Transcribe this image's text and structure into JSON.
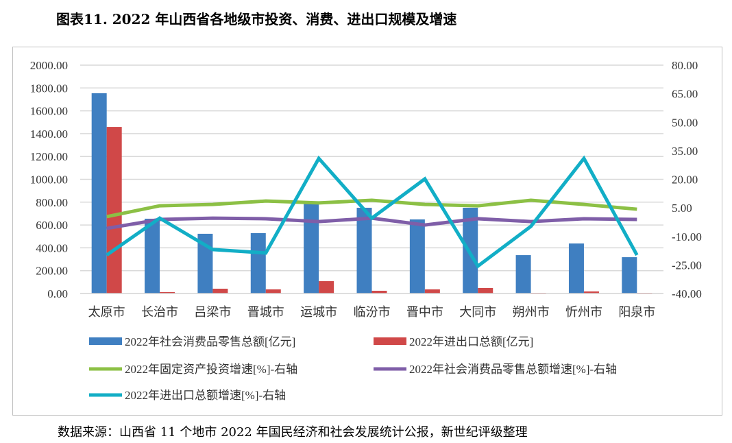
{
  "title": "图表11. 2022 年山西省各地级市投资、消费、进出口规模及增速",
  "source": "数据来源：山西省 11 个地市 2022 年国民经济和社会发展统计公报，新世纪评级整理",
  "chart_data": {
    "type": "bar",
    "categories": [
      "太原市",
      "长治市",
      "吕梁市",
      "晋城市",
      "运城市",
      "临汾市",
      "晋中市",
      "大同市",
      "朔州市",
      "忻州市",
      "阳泉市"
    ],
    "left_axis": {
      "ylim": [
        0,
        2000
      ],
      "ticks": [
        "0.00",
        "200.00",
        "400.00",
        "600.00",
        "800.00",
        "1000.00",
        "1200.00",
        "1400.00",
        "1600.00",
        "1800.00",
        "2000.00"
      ]
    },
    "right_axis": {
      "ylim": [
        -40,
        80
      ],
      "ticks": [
        "-40.00",
        "-25.00",
        "-10.00",
        "5.00",
        "20.00",
        "35.00",
        "50.00",
        "65.00",
        "80.00"
      ]
    },
    "grid": true,
    "legend_position": "bottom",
    "series": [
      {
        "name": "2022年社会消费品零售总额[亿元]",
        "type": "bar",
        "axis": "left",
        "color": "#3f7fc1",
        "values": [
          1754,
          655,
          523,
          529,
          793,
          751,
          649,
          751,
          336,
          438,
          318
        ]
      },
      {
        "name": "2022年进出口总额[亿元]",
        "type": "bar",
        "axis": "left",
        "color": "#d04848",
        "values": [
          1459,
          12,
          42,
          36,
          108,
          24,
          36,
          48,
          6,
          18,
          6
        ]
      },
      {
        "name": "2022年固定资产投资增速[%]-右轴",
        "type": "line",
        "axis": "right",
        "color": "#8cc045",
        "values": [
          0.4,
          6.1,
          6.8,
          8.6,
          7.6,
          9.0,
          6.8,
          6.1,
          9.0,
          6.8,
          4.3
        ]
      },
      {
        "name": "2022年社会消费品零售总额增速[%]-右轴",
        "type": "line",
        "axis": "right",
        "color": "#7f5ea8",
        "values": [
          -5.8,
          -1.1,
          -0.4,
          -0.7,
          -2.2,
          -0.4,
          -4.0,
          -0.7,
          -2.2,
          -0.7,
          -1.1
        ]
      },
      {
        "name": "2022年进出口总额增速[%]-右轴",
        "type": "line",
        "axis": "right",
        "color": "#12aec6",
        "values": [
          -19.8,
          -0.4,
          -16.9,
          -18.7,
          31.0,
          -0.4,
          20.2,
          -25.6,
          -4.7,
          31.0,
          -19.8
        ]
      }
    ]
  }
}
